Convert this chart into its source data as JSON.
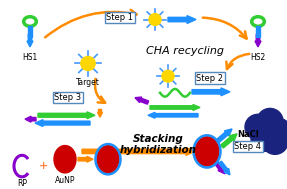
{
  "bg_color": "#ffffff",
  "orange": "#FF8C00",
  "blue": "#1E90FF",
  "green": "#32CD32",
  "purple": "#8800CC",
  "yellow": "#FFD700",
  "red": "#CC0000",
  "dark_navy": "#1a237e",
  "box_edge": "#5588BB",
  "sun_outline": "#4499FF",
  "texts": {
    "cha": "CHA recycling",
    "stacking": "Stacking\nhybridization",
    "nacl": "NaCl",
    "step1": "Step 1",
    "step2": "Step 2",
    "step3": "Step 3",
    "step4": "Step 4",
    "hs1": "HS1",
    "hs2": "HS2",
    "target": "Target",
    "rp": "RP",
    "aunp": "AuNP"
  }
}
